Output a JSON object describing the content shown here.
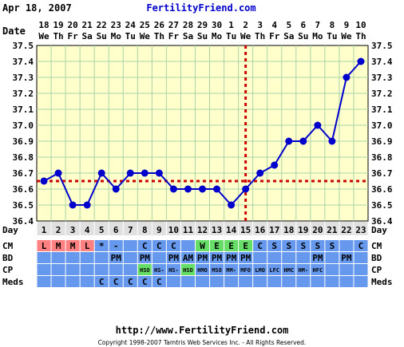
{
  "header": {
    "date": "Apr 18, 2007",
    "brand": "FertilityFriend.com"
  },
  "row_labels": {
    "date": "Date",
    "day": "Day",
    "cm": "CM",
    "bd": "BD",
    "cp": "CP",
    "meds": "Meds"
  },
  "dates": [
    "18",
    "19",
    "20",
    "21",
    "22",
    "23",
    "24",
    "25",
    "26",
    "27",
    "28",
    "29",
    "30",
    "1",
    "2",
    "3",
    "4",
    "5",
    "6",
    "7",
    "8",
    "9",
    "10"
  ],
  "weekdays": [
    "We",
    "Th",
    "Fr",
    "Sa",
    "Su",
    "Mo",
    "Tu",
    "We",
    "Th",
    "Fr",
    "Sa",
    "Su",
    "Mo",
    "Tu",
    "We",
    "Th",
    "Fr",
    "Sa",
    "Su",
    "Mo",
    "Tu",
    "We",
    "Th"
  ],
  "days": [
    "1",
    "2",
    "3",
    "4",
    "5",
    "6",
    "7",
    "8",
    "9",
    "10",
    "11",
    "12",
    "13",
    "14",
    "15",
    "16",
    "17",
    "18",
    "19",
    "20",
    "21",
    "22",
    "23"
  ],
  "cm_row": [
    "L",
    "M",
    "M",
    "L",
    "*",
    "-",
    "",
    "C",
    "C",
    "C",
    "",
    "W",
    "E",
    "E",
    "E",
    "C",
    "S",
    "S",
    "S",
    "S",
    "S",
    "",
    "C"
  ],
  "bd_row": [
    "",
    "",
    "",
    "",
    "",
    "PM",
    "",
    "PM",
    "",
    "PM",
    "AM",
    "PM",
    "PM",
    "PM",
    "PM",
    "",
    "",
    "",
    "",
    "PM",
    "",
    "PM",
    ""
  ],
  "cp_row": [
    "",
    "",
    "",
    "",
    "",
    "",
    "",
    "HSO",
    "HS-",
    "HS-",
    "HSO",
    "HMO",
    "MSO",
    "MM-",
    "MFO",
    "LMO",
    "LFC",
    "HMC",
    "HM-",
    "HFC",
    "",
    "",
    ""
  ],
  "meds_row": [
    "",
    "",
    "",
    "",
    "C",
    "C",
    "C",
    "C",
    "C",
    "",
    "",
    "",
    "",
    "",
    "",
    "",
    "",
    "",
    "",
    "",
    "",
    "",
    ""
  ],
  "colors": {
    "plot_bg": "#ffffcc",
    "grid": "#a8d4a8",
    "line": "#0000cc",
    "coverline": "#cc0000",
    "row_bg": "#6699ee",
    "day_bg": "#e0e0e0",
    "menses": "#ff8080",
    "fertile_cm": "#66dd66",
    "cp_highlight": "#66dd66"
  },
  "chart_data": {
    "type": "line",
    "title": "",
    "xlabel": "Day",
    "ylabel": "",
    "x": [
      1,
      2,
      3,
      4,
      5,
      6,
      7,
      8,
      9,
      10,
      11,
      12,
      13,
      14,
      15,
      16,
      17,
      18,
      19,
      20,
      21,
      22,
      23
    ],
    "y": [
      36.65,
      36.7,
      36.5,
      36.5,
      36.7,
      36.6,
      36.7,
      36.7,
      36.7,
      36.6,
      36.6,
      36.6,
      36.6,
      36.5,
      36.6,
      36.7,
      36.75,
      36.9,
      36.9,
      37.0,
      36.9,
      37.3,
      37.4
    ],
    "ylim": [
      36.4,
      37.5
    ],
    "yticks": [
      "36.4",
      "36.5",
      "36.6",
      "36.7",
      "36.8",
      "36.9",
      "37.0",
      "37.1",
      "37.2",
      "37.3",
      "37.4",
      "37.5"
    ],
    "coverline": 36.65,
    "ovulation_day": 15,
    "grid": true
  },
  "footer": {
    "url": "http://www.FertilityFriend.com",
    "copyright": "Copyright 1998-2007 Tamtris Web Services Inc. - All Rights Reserved."
  }
}
